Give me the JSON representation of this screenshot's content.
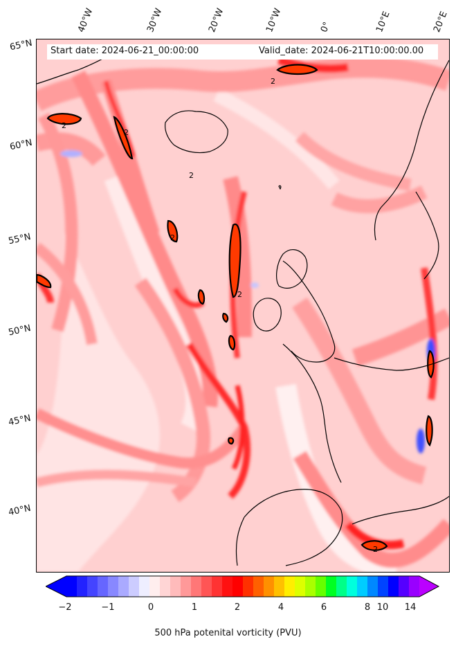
{
  "map": {
    "start_date": "Start date: 2024-06-21_00:00:00",
    "valid_date": "Valid_date: 2024-06-21T10:00:00.00",
    "field": "500 hPa potential vorticity",
    "contour_label": "2",
    "longitude_labels": [
      "40°W",
      "30°W",
      "20°W",
      "10°W",
      "0°",
      "10°E",
      "20°E"
    ],
    "latitude_labels": [
      "65°N",
      "60°N",
      "55°N",
      "50°N",
      "45°N",
      "40°N"
    ]
  },
  "colorbar": {
    "label": "500 hPa potenital vorticity (PVU)",
    "tick_labels": [
      "−2",
      "−1",
      "0",
      "1",
      "2",
      "4",
      "6",
      "8",
      "10",
      "14"
    ],
    "extend": "both",
    "colors": [
      "#0000ff",
      "#2222ff",
      "#4444ff",
      "#6666ff",
      "#8888ff",
      "#aaaaff",
      "#ccccff",
      "#eeeeff",
      "#ffeeee",
      "#ffd5d5",
      "#ffbbbb",
      "#ff9999",
      "#ff7777",
      "#ff5555",
      "#ff3333",
      "#ff1111",
      "#ff0000",
      "#ff3000",
      "#ff6000",
      "#ff9000",
      "#ffc000",
      "#ffee00",
      "#ddff00",
      "#aaff00",
      "#66ff00",
      "#00ff22",
      "#00ff88",
      "#00ffdd",
      "#00ccff",
      "#0088ff",
      "#0044ff",
      "#0000ff",
      "#5500ff",
      "#9900ff"
    ],
    "under_color": "#0000ff",
    "over_color": "#bb00ff"
  }
}
